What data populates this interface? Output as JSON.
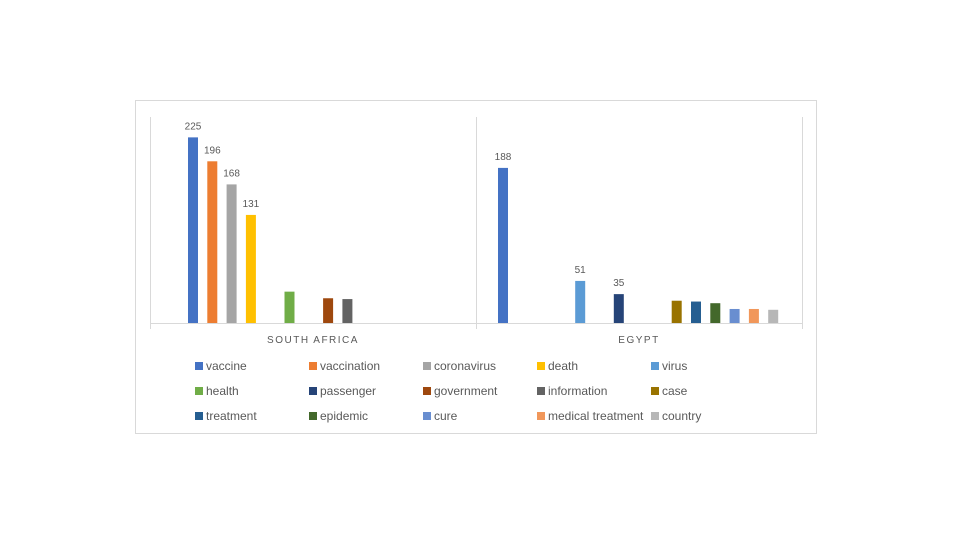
{
  "chart_data": {
    "type": "bar",
    "ylim": [
      0,
      240
    ],
    "grid": false,
    "legend_position": "bottom",
    "groups": [
      {
        "label": "SOUTH AFRICA",
        "bars": [
          {
            "series": "vaccine",
            "value": 225,
            "label": "225"
          },
          {
            "series": "vaccination",
            "value": 196,
            "label": "196"
          },
          {
            "series": "coronavirus",
            "value": 168,
            "label": "168"
          },
          {
            "series": "death",
            "value": 131,
            "label": "131"
          },
          {
            "series": "health",
            "value": 38
          },
          {
            "series": "government",
            "value": 30
          },
          {
            "series": "information",
            "value": 29
          }
        ]
      },
      {
        "label": "EGYPT",
        "bars": [
          {
            "series": "vaccine",
            "value": 188,
            "label": "188"
          },
          {
            "series": "virus",
            "value": 51,
            "label": "51"
          },
          {
            "series": "passenger",
            "value": 35,
            "label": "35"
          },
          {
            "series": "case",
            "value": 27
          },
          {
            "series": "treatment",
            "value": 26
          },
          {
            "series": "epidemic",
            "value": 24
          },
          {
            "series": "cure",
            "value": 17
          },
          {
            "series": "medical treatment",
            "value": 17
          },
          {
            "series": "country",
            "value": 16
          }
        ]
      }
    ],
    "series": [
      {
        "name": "vaccine",
        "color": "#4472c4"
      },
      {
        "name": "vaccination",
        "color": "#ed7d31"
      },
      {
        "name": "coronavirus",
        "color": "#a5a5a5"
      },
      {
        "name": "death",
        "color": "#ffc000"
      },
      {
        "name": "virus",
        "color": "#5b9bd5"
      },
      {
        "name": "health",
        "color": "#70ad47"
      },
      {
        "name": "passenger",
        "color": "#264478"
      },
      {
        "name": "government",
        "color": "#9e480e"
      },
      {
        "name": "information",
        "color": "#636363"
      },
      {
        "name": "case",
        "color": "#997300"
      },
      {
        "name": "treatment",
        "color": "#255e91"
      },
      {
        "name": "epidemic",
        "color": "#43682b"
      },
      {
        "name": "cure",
        "color": "#698ed0"
      },
      {
        "name": "medical treatment",
        "color": "#f1975a"
      },
      {
        "name": "country",
        "color": "#b7b7b7"
      }
    ]
  }
}
